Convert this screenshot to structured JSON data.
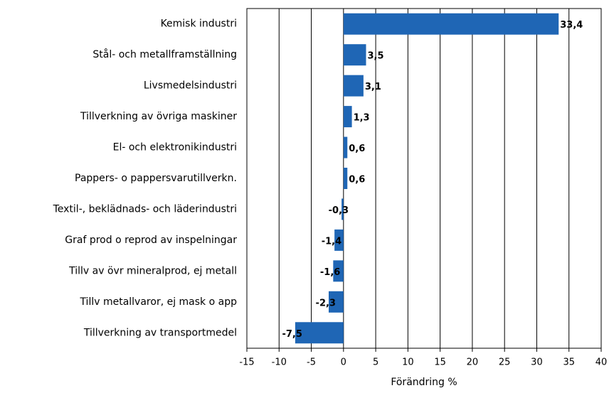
{
  "chart_data": {
    "type": "hbar",
    "categories": [
      "Kemisk industri",
      "Stål- och metallframställning",
      "Livsmedelsindustri",
      "Tillverkning av övriga maskiner",
      "El- och elektronikindustri",
      "Pappers- o pappersvarutillverkn.",
      "Textil-, beklädnads- och läderindustri",
      "Graf prod o reprod av inspelningar",
      "Tillv av övr mineralprod, ej metall",
      "Tillv metallvaror, ej mask o app",
      "Tillverkning av transportmedel"
    ],
    "values": [
      33.4,
      3.5,
      3.1,
      1.3,
      0.6,
      0.6,
      -0.3,
      -1.4,
      -1.6,
      -2.3,
      -7.5
    ],
    "value_labels": [
      "33,4",
      "3,5",
      "3,1",
      "1,3",
      "0,6",
      "0,6",
      "-0,3",
      "-1,4",
      "-1,6",
      "-2,3",
      "-7,5"
    ],
    "color": "#1f66b5",
    "xlabel": "Förändring %",
    "xlim": [
      -15,
      40
    ],
    "xticks": [
      -15,
      -10,
      -5,
      0,
      5,
      10,
      15,
      20,
      25,
      30,
      35,
      40
    ],
    "grid": true
  }
}
